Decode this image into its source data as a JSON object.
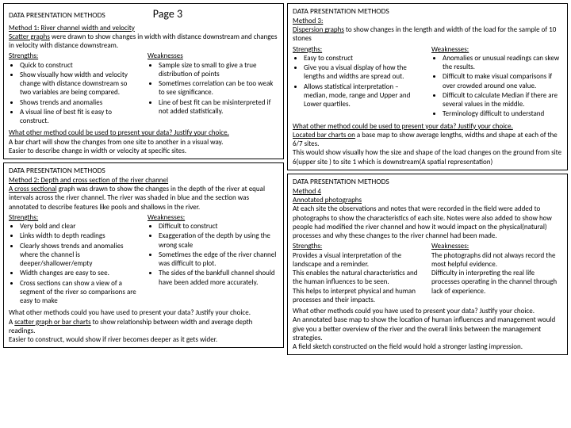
{
  "page_label": "Page 3",
  "section_header": "DATA PRESENTATION METHODS",
  "left": {
    "p1": {
      "method_title": "Method 1: River channel width and velocity",
      "desc_part1": "Scatter graphs",
      "desc_part2": " were drawn to show changes in width with distance downstream and changes in velocity with distance downstream.",
      "strengths_label": "Strengths:",
      "strengths": [
        "Quick to construct",
        "Show visually how width and velocity change with distance downstream so two variables are being compared.",
        "Shows trends and anomalies",
        "A visual line of best fit is easy to construct."
      ],
      "weaknesses_label": "Weaknesses",
      "weaknesses": [
        "Sample size to small to give a true distribution of points",
        "Sometimes correlation can be too weak to see significance.",
        "Line of best fit can be misinterpreted if not added statistically."
      ],
      "other_q": "What other method could be used to present your data? Justify your choice.",
      "other_a1": "A bar chart will show the changes from one site to another in a visual way.",
      "other_a2": "Easier to describe change in width or velocity at specific sites."
    },
    "p2": {
      "method_title": "Method 2: Depth and cross section of the river channel",
      "desc_part1": "A cross sectional",
      "desc_part2": " graph was drawn to show the changes in the depth of the river at equal intervals across the river channel. The river was shaded in blue and the section was annotated to describe features like pools and shallows in the river.",
      "strengths_label": "Strengths:",
      "strengths": [
        "Very bold and clear",
        "Links width to depth readings",
        "Clearly shows trends and anomalies where the channel is deeper/shallower/empty",
        "Width changes are easy to see.",
        "Cross sections can show a view of a segment of the river so comparisons are easy to make"
      ],
      "weaknesses_label": "Weaknesses:",
      "weaknesses": [
        "Difficult to construct",
        "Exaggeration of the depth by using the wrong scale",
        "Sometimes the edge of the river channel was difficult to plot.",
        "The sides of the bankfull channel should have been added more accurately."
      ],
      "other_q": "What other methods could you have used to present your data? Justify your choice.",
      "other_a1a": "A ",
      "other_a1b": "scatter graph or bar charts",
      "other_a1c": " to show relationship between width and average depth readings.",
      "other_a2": "Easier to construct, would show if river becomes deeper as it gets wider."
    }
  },
  "right": {
    "p1": {
      "method_title": "Method 3:",
      "desc_part1": "Dispersion graphs",
      "desc_part2": " to show changes in the length and width of the load for the sample of 10 stones",
      "strengths_label": "Strengths:",
      "strengths": [
        "Easy to construct",
        "Give you a visual display of how the lengths and widths are spread out.",
        "Allows statistical interpretation – median, mode, range and Upper and Lower quartiles."
      ],
      "weaknesses_label": "Weaknesses:",
      "weaknesses": [
        "Anomalies or unusual readings can skew the results.",
        "Difficult to make visual comparisons if over crowded around one value.",
        "Difficult to calculate Median if there are several values in the middle.",
        "Terminology difficult to understand"
      ],
      "other_q": "What other method could be used to present your data? Justify your choice.",
      "other_a1a": "Located bar charts on",
      "other_a1b": " a base map to show average lengths, widths and shape at each of the 6/7 sites.",
      "other_a2": "This would show visually how the size and shape of the load changes on the ground from site 6(upper site ) to site 1 which is downstream(A spatial representation)"
    },
    "p2": {
      "method_title": "Method 4",
      "sub_title": "Annotated photographs",
      "desc": "At each site the observations and notes that were recorded in the field were added to photographs to show the characteristics of each site. Notes were also added to show how people had modified the river channel and how it would impact on the physical(natural) processes and why these changes to the river channel had been made.",
      "strengths_label": "Strengths:",
      "s1": "Provides a visual interpretation of the landscape and a reminder.",
      "s2": "This enables the natural characteristics and the human influences to be seen.",
      "s3": "This helps to interpret physical and human processes and their impacts.",
      "weaknesses_label": "Weaknesses:",
      "w1": "The photographs did not always record the most helpful evidence.",
      "w2": "Difficulty in interpreting the real life processes operating in the channel through lack of experience.",
      "other_q": "What other methods could you have used to present your data? Justify your choice.",
      "other_a1": "An annotated base map to show the location of human influences and management would give you a better overview of the river and the overall links between the management strategies.",
      "other_a2": "A field sketch constructed on the field would hold a stronger lasting impression."
    }
  }
}
